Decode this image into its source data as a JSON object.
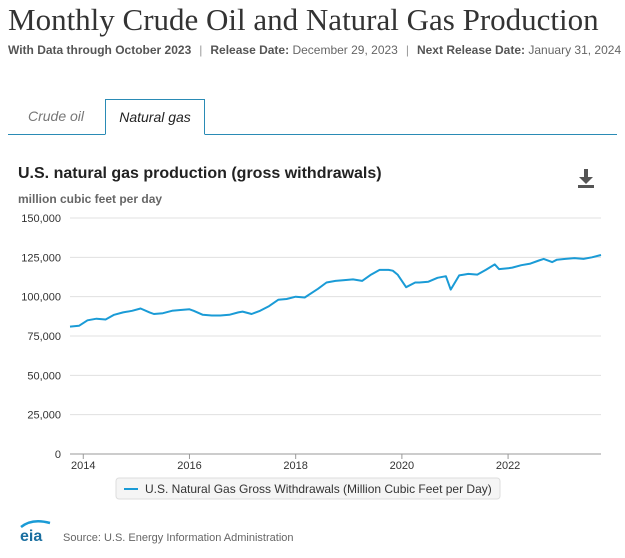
{
  "header": {
    "title": "Monthly Crude Oil and Natural Gas Production",
    "data_through": "With Data through October 2023",
    "release_label": "Release Date:",
    "release_value": "December 29, 2023",
    "next_label": "Next Release Date:",
    "next_value": "January 31, 2024"
  },
  "tabs": [
    {
      "label": "Crude oil",
      "active": false
    },
    {
      "label": "Natural gas",
      "active": true
    }
  ],
  "chart_header": {
    "title": "U.S. natural gas production (gross withdrawals)",
    "unit": "million cubic feet per day",
    "download_icon": "download-icon"
  },
  "legend": {
    "label": "U.S. Natural Gas Gross Withdrawals (Million Cubic Feet per Day)"
  },
  "footer": {
    "logo_text": "eia",
    "source": "Source: U.S. Energy Information Administration"
  },
  "colors": {
    "series": "#1a9bd6",
    "tab_border": "#2a8bb5",
    "grid": "#e0e0e0"
  },
  "chart_data": {
    "type": "line",
    "ylim": [
      0,
      150000
    ],
    "y_ticks": [
      0,
      25000,
      50000,
      75000,
      100000,
      125000,
      150000
    ],
    "y_tick_labels": [
      "0",
      "25,000",
      "50,000",
      "75,000",
      "100,000",
      "125,000",
      "150,000"
    ],
    "xlim": [
      2013.75,
      2023.75
    ],
    "x_ticks": [
      2014,
      2016,
      2018,
      2020,
      2022
    ],
    "x_tick_labels": [
      "2014",
      "2016",
      "2018",
      "2020",
      "2022"
    ],
    "grid": true,
    "legend_position": "bottom",
    "series": [
      {
        "name": "U.S. Natural Gas Gross Withdrawals (Million Cubic Feet per Day)",
        "x": [
          2013.75,
          2013.92,
          2014.08,
          2014.25,
          2014.42,
          2014.58,
          2014.75,
          2014.92,
          2015.08,
          2015.25,
          2015.33,
          2015.5,
          2015.67,
          2015.83,
          2016.0,
          2016.08,
          2016.25,
          2016.42,
          2016.58,
          2016.75,
          2016.92,
          2017.0,
          2017.17,
          2017.33,
          2017.5,
          2017.67,
          2017.83,
          2018.0,
          2018.17,
          2018.33,
          2018.42,
          2018.58,
          2018.75,
          2018.92,
          2019.08,
          2019.25,
          2019.42,
          2019.58,
          2019.75,
          2019.83,
          2019.92,
          2020.08,
          2020.25,
          2020.33,
          2020.5,
          2020.67,
          2020.83,
          2020.92,
          2021.08,
          2021.17,
          2021.25,
          2021.42,
          2021.58,
          2021.75,
          2021.83,
          2022.0,
          2022.08,
          2022.25,
          2022.42,
          2022.58,
          2022.67,
          2022.83,
          2022.92,
          2023.08,
          2023.25,
          2023.42,
          2023.58,
          2023.75
        ],
        "values": [
          81000,
          81500,
          85000,
          86000,
          85500,
          88500,
          90000,
          91000,
          92500,
          90000,
          89000,
          89500,
          91000,
          91500,
          92000,
          91000,
          88500,
          88000,
          88000,
          88500,
          90000,
          90500,
          89000,
          91000,
          94000,
          98000,
          98500,
          100000,
          99500,
          103000,
          105000,
          109000,
          110000,
          110500,
          111000,
          110000,
          114000,
          117000,
          117000,
          116500,
          114000,
          106000,
          109000,
          109000,
          109500,
          112000,
          113000,
          104500,
          113500,
          114000,
          114500,
          114000,
          117000,
          120500,
          117500,
          118000,
          118500,
          120000,
          121000,
          123000,
          124000,
          122000,
          123500,
          124000,
          124500,
          124000,
          125000,
          126500
        ]
      }
    ]
  }
}
